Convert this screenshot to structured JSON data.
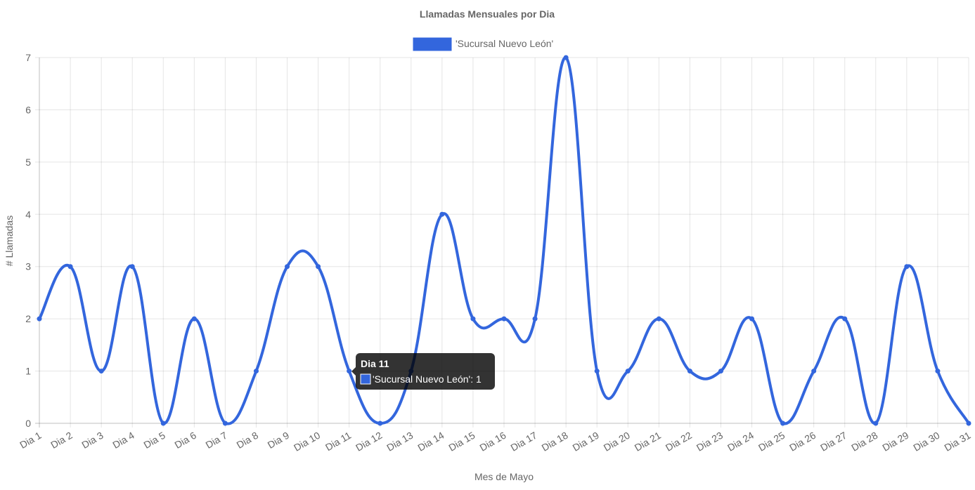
{
  "chart_data": {
    "type": "line",
    "title": "Llamadas Mensuales por Dia",
    "xlabel": "Mes de Mayo",
    "ylabel": "# Llamadas",
    "categories": [
      "Dia 1",
      "Dia 2",
      "Dia 3",
      "Dia 4",
      "Dia 5",
      "Dia 6",
      "Dia 7",
      "Dia 8",
      "Dia 9",
      "Dia 10",
      "Dia 11",
      "Dia 12",
      "Dia 13",
      "Dia 14",
      "Dia 15",
      "Dia 16",
      "Dia 17",
      "Dia 18",
      "Dia 19",
      "Dia 20",
      "Dia 21",
      "Dia 22",
      "Dia 23",
      "Dia 24",
      "Dia 25",
      "Dia 26",
      "Dia 27",
      "Dia 28",
      "Dia 29",
      "Dia 30",
      "Dia 31"
    ],
    "series": [
      {
        "name": "'Sucursal Nuevo León'",
        "color": "#3366dd",
        "values": [
          2,
          3,
          1,
          3,
          0,
          2,
          0,
          1,
          3,
          3,
          1,
          0,
          1,
          4,
          2,
          2,
          2,
          7,
          1,
          1,
          2,
          1,
          1,
          2,
          0,
          1,
          2,
          0,
          3,
          1,
          0
        ]
      }
    ],
    "ylim": [
      0,
      7
    ],
    "yticks": [
      "0",
      "1",
      "2",
      "3",
      "4",
      "5",
      "6",
      "7"
    ],
    "grid": true,
    "legend_position": "top",
    "tooltip": {
      "title": "Dia 11",
      "text": "'Sucursal Nuevo León': 1",
      "index": 10
    }
  }
}
